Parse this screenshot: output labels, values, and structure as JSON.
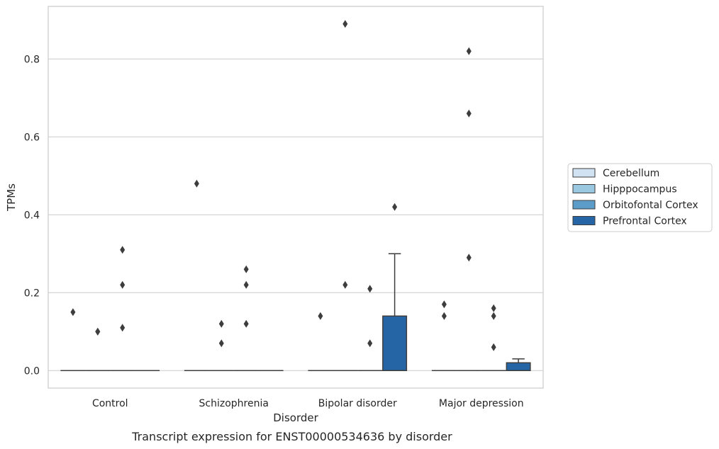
{
  "caption": "Transcript expression for ENST00000534636 by disorder",
  "chart_data": {
    "type": "boxplot",
    "xlabel": "Disorder",
    "ylabel": "TPMs",
    "ylim": [
      -0.045,
      0.935
    ],
    "yticks": [
      0.0,
      0.2,
      0.4,
      0.6,
      0.8
    ],
    "ytick_labels": [
      "0.0",
      "0.2",
      "0.4",
      "0.6",
      "0.8"
    ],
    "grid": "horizontal",
    "legend_position": "right",
    "categories": [
      "Control",
      "Schizophrenia",
      "Bipolar disorder",
      "Major depression"
    ],
    "series": [
      {
        "name": "Cerebellum",
        "color": "#d1e2f2",
        "boxes": [
          {
            "q1": 0,
            "median": 0,
            "q3": 0,
            "whisker_low": 0,
            "whisker_high": 0,
            "outliers": [
              0.15
            ]
          },
          {
            "q1": 0,
            "median": 0,
            "q3": 0,
            "whisker_low": 0,
            "whisker_high": 0,
            "outliers": [
              0.48
            ]
          },
          {
            "q1": 0,
            "median": 0,
            "q3": 0,
            "whisker_low": 0,
            "whisker_high": 0,
            "outliers": [
              0.14
            ]
          },
          {
            "q1": 0,
            "median": 0,
            "q3": 0,
            "whisker_low": 0,
            "whisker_high": 0,
            "outliers": [
              0.17,
              0.14
            ]
          }
        ]
      },
      {
        "name": "Hipppocampus",
        "color": "#9ac8e0",
        "boxes": [
          {
            "q1": 0,
            "median": 0,
            "q3": 0,
            "whisker_low": 0,
            "whisker_high": 0,
            "outliers": [
              0.1,
              0.1
            ]
          },
          {
            "q1": 0,
            "median": 0,
            "q3": 0,
            "whisker_low": 0,
            "whisker_high": 0,
            "outliers": [
              0.12,
              0.07
            ]
          },
          {
            "q1": 0,
            "median": 0,
            "q3": 0,
            "whisker_low": 0,
            "whisker_high": 0,
            "outliers": [
              0.89,
              0.22
            ]
          },
          {
            "q1": 0,
            "median": 0,
            "q3": 0,
            "whisker_low": 0,
            "whisker_high": 0,
            "outliers": [
              0.82,
              0.66,
              0.29
            ]
          }
        ]
      },
      {
        "name": "Orbitofontal Cortex",
        "color": "#5b9cc8",
        "boxes": [
          {
            "q1": 0,
            "median": 0,
            "q3": 0,
            "whisker_low": 0,
            "whisker_high": 0,
            "outliers": [
              0.31,
              0.22,
              0.11
            ]
          },
          {
            "q1": 0,
            "median": 0,
            "q3": 0,
            "whisker_low": 0,
            "whisker_high": 0,
            "outliers": [
              0.26,
              0.22,
              0.12
            ]
          },
          {
            "q1": 0,
            "median": 0,
            "q3": 0,
            "whisker_low": 0,
            "whisker_high": 0,
            "outliers": [
              0.21,
              0.07
            ]
          },
          {
            "q1": 0,
            "median": 0,
            "q3": 0,
            "whisker_low": 0,
            "whisker_high": 0,
            "outliers": [
              0.16,
              0.14,
              0.06
            ]
          }
        ]
      },
      {
        "name": "Prefrontal Cortex",
        "color": "#2565a5",
        "boxes": [
          {
            "q1": 0,
            "median": 0,
            "q3": 0,
            "whisker_low": 0,
            "whisker_high": 0,
            "outliers": []
          },
          {
            "q1": 0,
            "median": 0,
            "q3": 0,
            "whisker_low": 0,
            "whisker_high": 0,
            "outliers": []
          },
          {
            "q1": 0,
            "median": 0,
            "q3": 0.14,
            "whisker_low": 0,
            "whisker_high": 0.3,
            "outliers": [
              0.42
            ]
          },
          {
            "q1": 0,
            "median": 0,
            "q3": 0.02,
            "whisker_low": 0,
            "whisker_high": 0.03,
            "outliers": []
          }
        ]
      }
    ]
  }
}
